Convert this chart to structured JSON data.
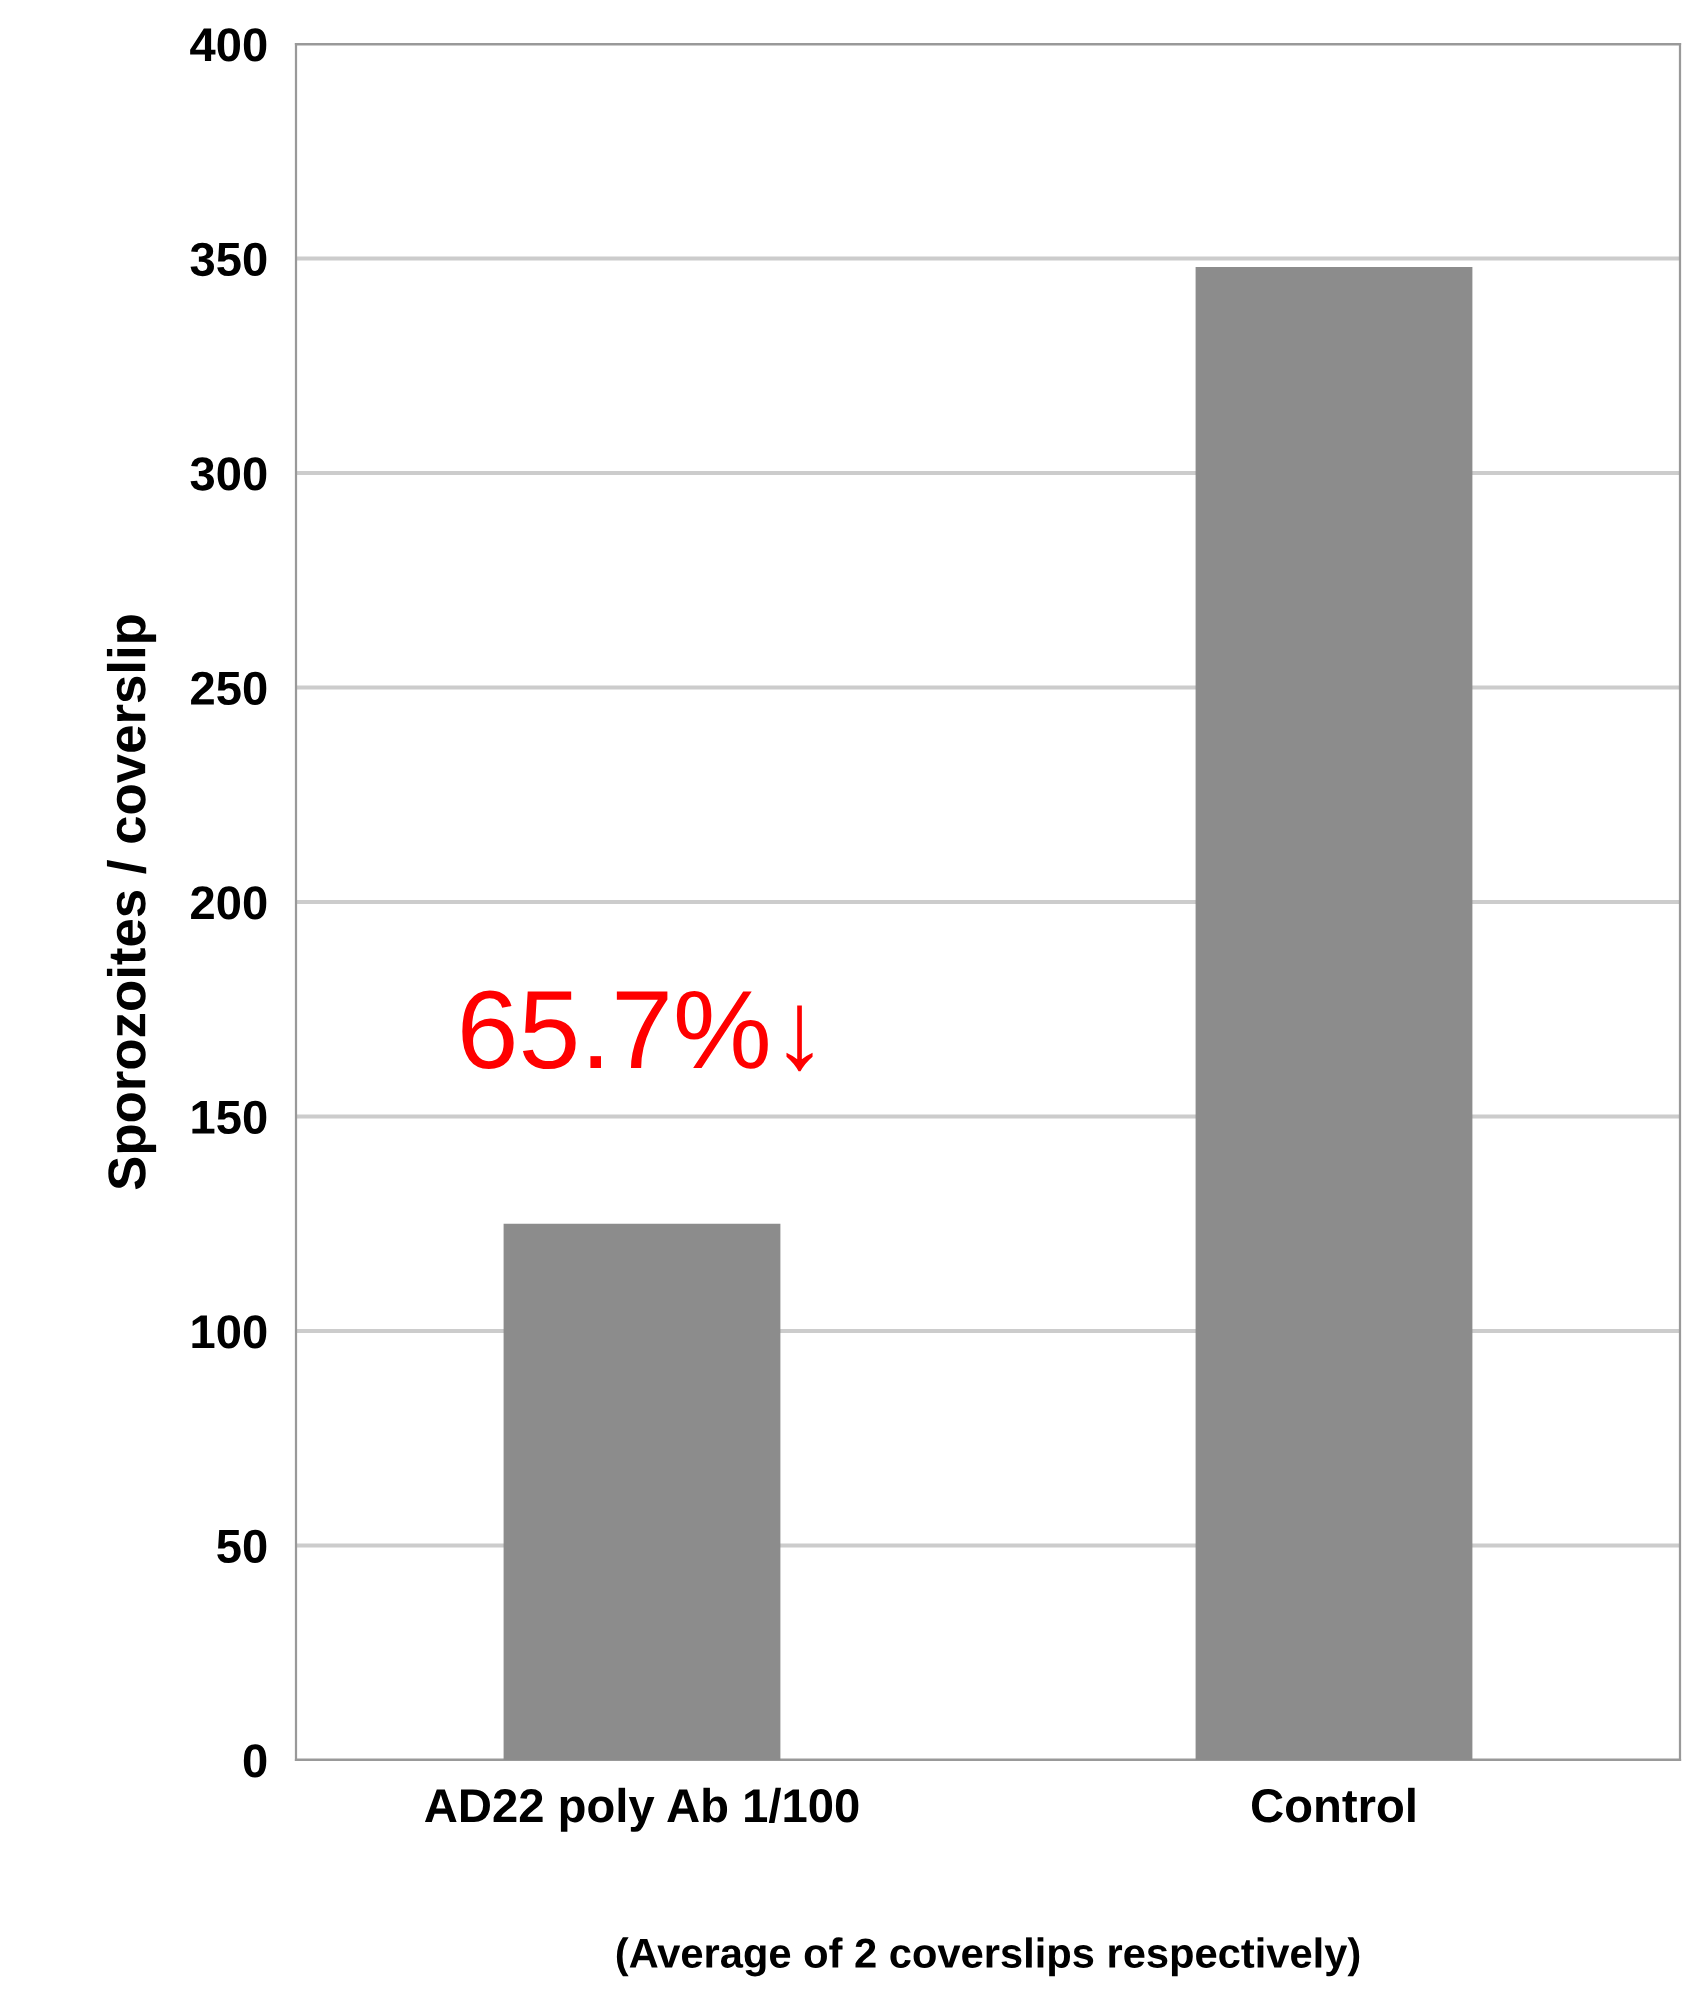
{
  "chart_data": {
    "type": "bar",
    "categories": [
      "AD22 poly Ab 1/100",
      "Control"
    ],
    "values": [
      125,
      348
    ],
    "color": "#8c8c8c",
    "ylabel": "Sporozoites / coverslip",
    "xlabel": "(Average of 2 coverslips respectively)",
    "ylim": [
      0,
      400
    ],
    "yticks": [
      0,
      50,
      100,
      150,
      200,
      250,
      300,
      350,
      400
    ],
    "grid": "y",
    "annotations": [
      "65.7%↓"
    ]
  }
}
